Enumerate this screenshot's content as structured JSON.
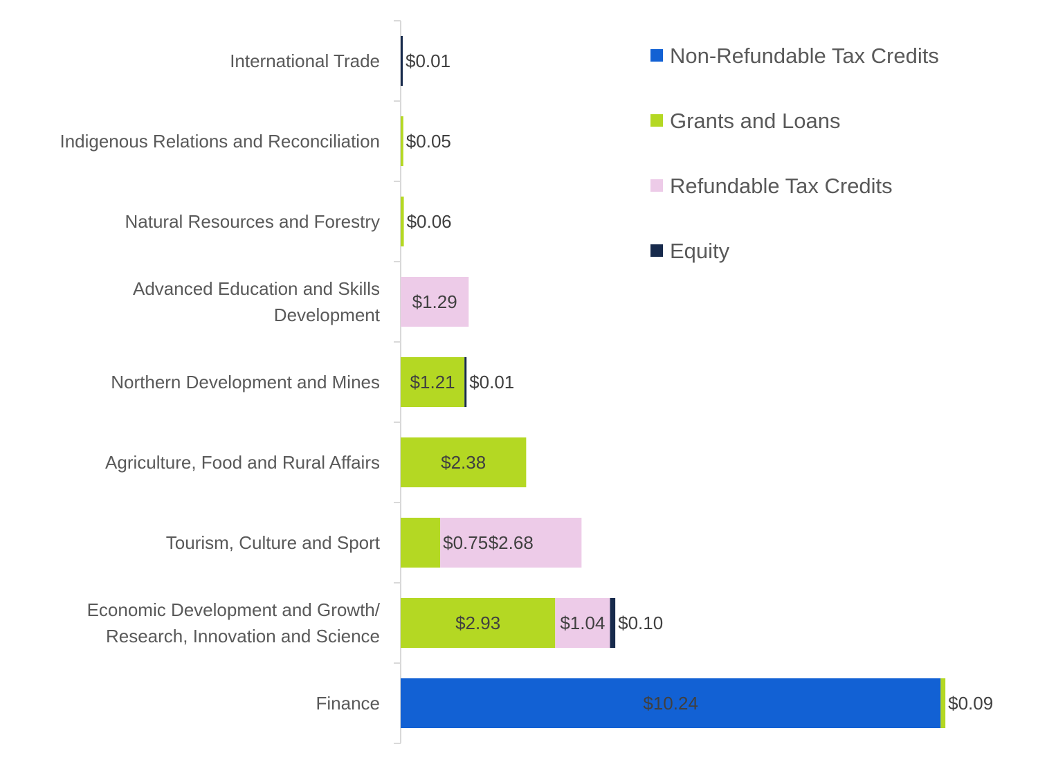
{
  "chart_data": {
    "type": "bar",
    "orientation": "horizontal",
    "stacked": true,
    "title": "",
    "xlabel": "",
    "ylabel": "",
    "xlim": [
      0,
      10.5
    ],
    "grid": false,
    "legend_position": "top-right",
    "categories": [
      [
        "International Trade"
      ],
      [
        "Indigenous Relations and Reconciliation"
      ],
      [
        "Natural Resources and Forestry"
      ],
      [
        "Advanced Education and Skills",
        "Development"
      ],
      [
        "Northern Development and Mines"
      ],
      [
        "Agriculture, Food and Rural Affairs"
      ],
      [
        "Tourism, Culture and Sport"
      ],
      [
        "Economic Development and Growth/",
        "Research, Innovation and Science"
      ],
      [
        "Finance"
      ]
    ],
    "series": [
      {
        "name": "Non-Refundable Tax Credits",
        "color": "#1261d4",
        "values": [
          0,
          0,
          0,
          0,
          0,
          0,
          0,
          0,
          10.24
        ],
        "labels": [
          null,
          null,
          null,
          null,
          null,
          null,
          null,
          null,
          "$10.24"
        ]
      },
      {
        "name": "Grants and Loans",
        "color": "#b4d823",
        "values": [
          0,
          0.05,
          0.06,
          0,
          1.21,
          2.38,
          0.75,
          2.93,
          0.09
        ],
        "labels": [
          null,
          "$0.05",
          "$0.06",
          null,
          "$1.21",
          "$2.38",
          "$0.75",
          "$2.93",
          "$0.09"
        ]
      },
      {
        "name": "Refundable Tax Credits",
        "color": "#edcbe8",
        "values": [
          0,
          0,
          0,
          1.29,
          0,
          0,
          2.68,
          1.04,
          0
        ],
        "labels": [
          null,
          null,
          null,
          "$1.29",
          null,
          null,
          "$2.68",
          "$1.04",
          null
        ]
      },
      {
        "name": "Equity",
        "color": "#172a4c",
        "values": [
          0.01,
          0,
          0,
          0,
          0.01,
          0,
          0,
          0.1,
          0
        ],
        "labels": [
          "$0.01",
          null,
          null,
          null,
          "$0.01",
          null,
          null,
          "$0.10",
          null
        ]
      }
    ]
  }
}
